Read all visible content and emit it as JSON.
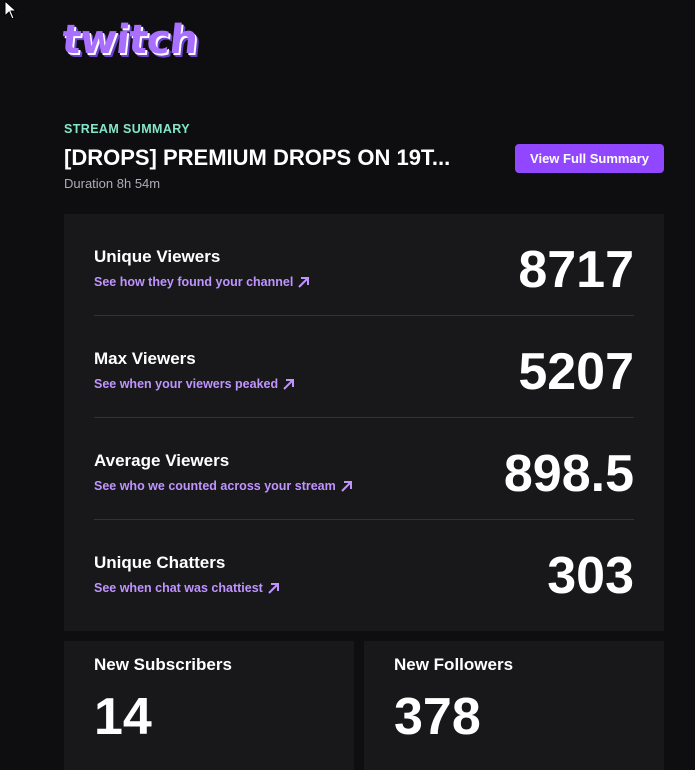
{
  "brand": {
    "logo_text": "twitch",
    "accent": "#9147ff",
    "link_color": "#bf94ff",
    "eyebrow_color": "#84e6c8"
  },
  "header": {
    "eyebrow": "STREAM SUMMARY",
    "title": "[DROPS] PREMIUM DROPS ON 19T...",
    "duration": "Duration 8h 54m",
    "view_full_summary_label": "View Full Summary"
  },
  "stats": [
    {
      "label": "Unique Viewers",
      "link": "See how they found your channel",
      "value": "8717",
      "icon": "arrow-up-right-icon"
    },
    {
      "label": "Max Viewers",
      "link": "See when your viewers peaked",
      "value": "5207",
      "icon": "arrow-up-right-icon"
    },
    {
      "label": "Average Viewers",
      "link": "See who we counted across your stream",
      "value": "898.5",
      "icon": "arrow-up-right-icon"
    },
    {
      "label": "Unique Chatters",
      "link": "See when chat was chattiest",
      "value": "303",
      "icon": "arrow-up-right-icon"
    }
  ],
  "summary_cards": [
    {
      "label": "New Subscribers",
      "value": "14"
    },
    {
      "label": "New Followers",
      "value": "378"
    }
  ]
}
